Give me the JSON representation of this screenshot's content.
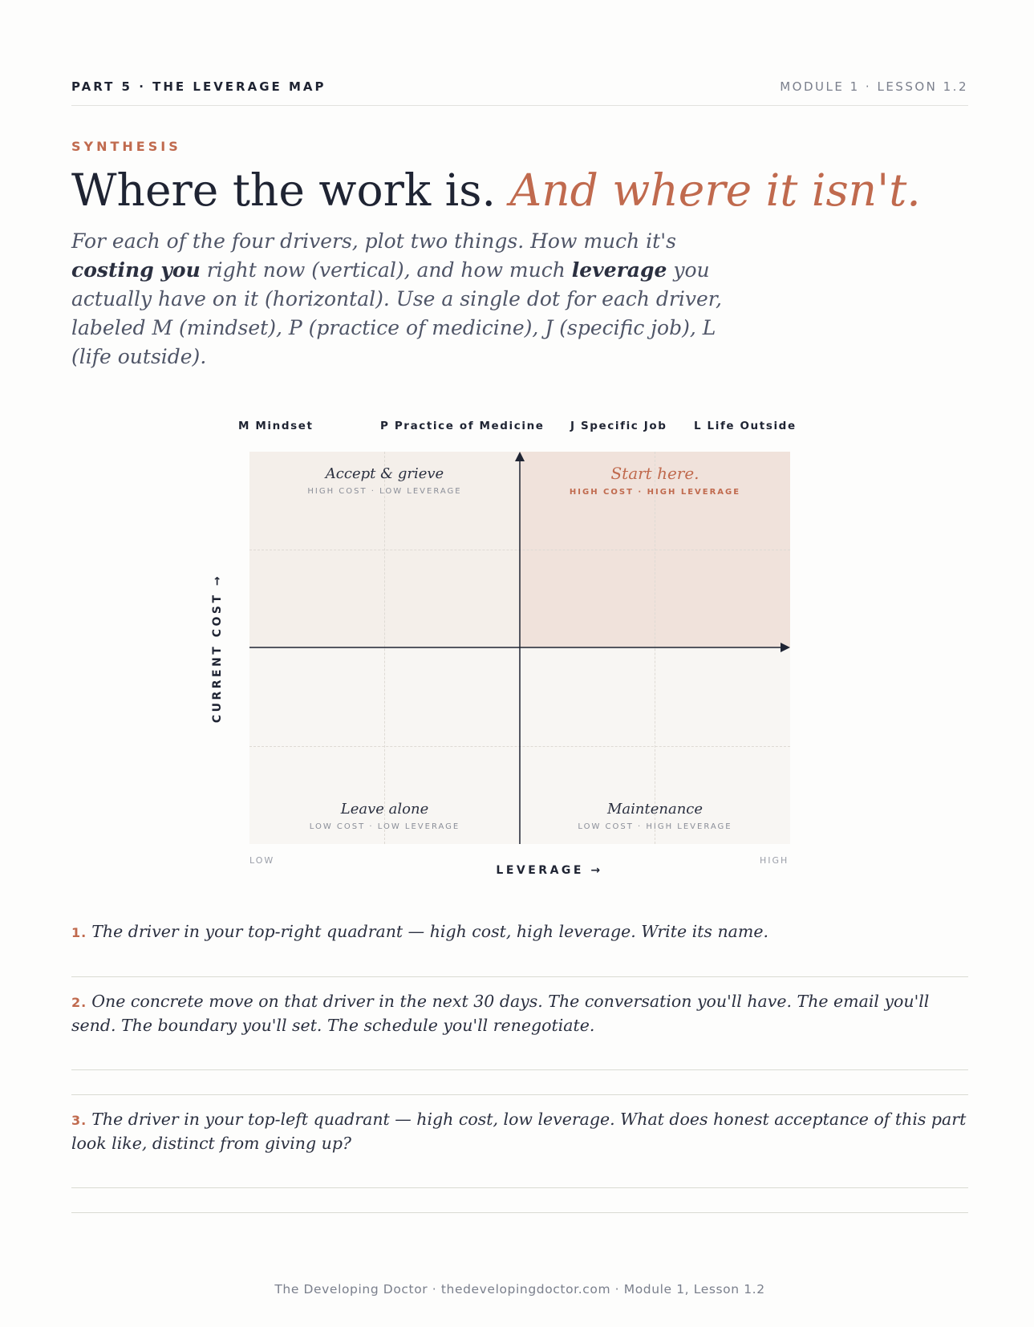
{
  "header": {
    "part_label": "PART 5 · THE LEVERAGE MAP",
    "module_label": "MODULE 1 · LESSON 1.2"
  },
  "section": {
    "eyebrow": "SYNTHESIS",
    "headline_plain": "Where the work is.",
    "headline_accent": "And where it isn't.",
    "intro": {
      "p1": "For each of the four drivers, plot two things. How much it's ",
      "b1": "costing you",
      "p2": " right now (vertical), and how much ",
      "b2": "leverage",
      "p3": " you actually have on it (horizontal). Use a single dot for each driver, labeled M (mindset), P (practice of medicine), J (specific job), L (life outside)."
    }
  },
  "legend": [
    {
      "code": "M",
      "label": "Mindset"
    },
    {
      "code": "P",
      "label": "Practice of Medicine"
    },
    {
      "code": "J",
      "label": "Specific Job"
    },
    {
      "code": "L",
      "label": "Life Outside"
    }
  ],
  "chart_data": {
    "type": "quadrant",
    "y_axis_title": "CURRENT COST →",
    "x_axis_title": "LEVERAGE →",
    "x_low_label": "LOW",
    "x_high_label": "HIGH",
    "grid": true,
    "quadrants": {
      "top_left": {
        "name": "Accept & grieve",
        "sub": "HIGH COST · LOW LEVERAGE"
      },
      "top_right": {
        "name": "Start here.",
        "sub": "HIGH COST · HIGH LEVERAGE",
        "highlight": "#c06a4e"
      },
      "bottom_left": {
        "name": "Leave alone",
        "sub": "LOW COST · LOW LEVERAGE"
      },
      "bottom_right": {
        "name": "Maintenance",
        "sub": "LOW COST · HIGH LEVERAGE"
      }
    }
  },
  "questions": [
    {
      "num": "1.",
      "text": "The driver in your top-right quadrant — high cost, high leverage. Write its name."
    },
    {
      "num": "2.",
      "text": "One concrete move on that driver in the next 30 days. The conversation you'll have. The email you'll send. The boundary you'll set. The schedule you'll renegotiate."
    },
    {
      "num": "3.",
      "text": "The driver in your top-left quadrant — high cost, low leverage. What does honest acceptance of this part look like, distinct from giving up?"
    }
  ],
  "footer": "The Developing Doctor · thedevelopingdoctor.com · Module 1, Lesson 1.2",
  "colors": {
    "accent": "#c06a4e",
    "ink": "#1f2433",
    "muted": "#7a7f8c"
  }
}
